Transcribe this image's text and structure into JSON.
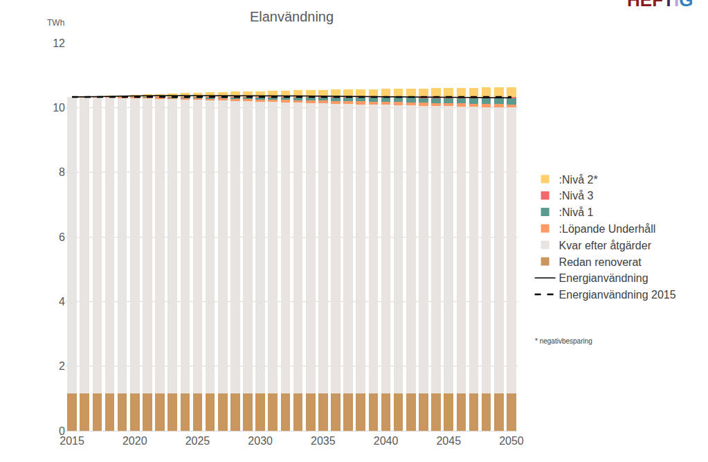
{
  "chart_data": {
    "type": "bar",
    "stacked": true,
    "title": "Elanvändning",
    "y_label": "TWh",
    "logo": "HEFTIG",
    "annotations": [
      "* negativbesparing"
    ],
    "legend": "right",
    "grid": true,
    "x": [
      2015,
      2016,
      2017,
      2018,
      2019,
      2020,
      2021,
      2022,
      2023,
      2024,
      2025,
      2026,
      2027,
      2028,
      2029,
      2030,
      2031,
      2032,
      2033,
      2034,
      2035,
      2036,
      2037,
      2038,
      2039,
      2040,
      2041,
      2042,
      2043,
      2044,
      2045,
      2046,
      2047,
      2048,
      2049,
      2050
    ],
    "xlim": [
      2014.5,
      2050.5
    ],
    "xticks": [
      2015,
      2020,
      2025,
      2030,
      2035,
      2040,
      2045,
      2050
    ],
    "ylim": [
      0,
      12
    ],
    "yticks": [
      0,
      2,
      4,
      6,
      8,
      10,
      12
    ],
    "series": [
      {
        "name": "Redan renoverat",
        "type": "bar",
        "color": "#c9965e",
        "values": [
          1.15,
          1.15,
          1.15,
          1.15,
          1.15,
          1.15,
          1.15,
          1.15,
          1.15,
          1.15,
          1.15,
          1.15,
          1.15,
          1.15,
          1.15,
          1.15,
          1.15,
          1.15,
          1.15,
          1.15,
          1.15,
          1.15,
          1.15,
          1.15,
          1.15,
          1.15,
          1.15,
          1.15,
          1.15,
          1.15,
          1.15,
          1.15,
          1.15,
          1.15,
          1.15,
          1.15
        ]
      },
      {
        "name": "Kvar efter åtgärder",
        "type": "bar",
        "color": "#e8e4e2",
        "values": [
          9.18,
          9.17,
          9.165,
          9.16,
          9.155,
          9.15,
          9.137,
          9.125,
          9.112,
          9.099,
          9.087,
          9.074,
          9.063,
          9.053,
          9.042,
          9.031,
          9.021,
          9.01,
          9.0,
          8.991,
          8.981,
          8.971,
          8.962,
          8.952,
          8.943,
          8.935,
          8.926,
          8.917,
          8.909,
          8.9,
          8.891,
          8.883,
          8.875,
          8.866,
          8.858,
          8.85
        ]
      },
      {
        "name": ":Löpande Underhåll",
        "type": "bar",
        "color": "#ff9966",
        "values": [
          0,
          0.01,
          0.015,
          0.02,
          0.025,
          0.03,
          0.035,
          0.04,
          0.045,
          0.05,
          0.055,
          0.06,
          0.063,
          0.066,
          0.069,
          0.072,
          0.075,
          0.078,
          0.08,
          0.082,
          0.084,
          0.086,
          0.088,
          0.09,
          0.091,
          0.092,
          0.093,
          0.094,
          0.095,
          0.096,
          0.097,
          0.098,
          0.098,
          0.099,
          0.1,
          0.1
        ]
      },
      {
        "name": ":Nivå 1",
        "type": "bar",
        "color": "#5b9a8f",
        "values": [
          0,
          0,
          0,
          0,
          0,
          0,
          0.007,
          0.013,
          0.02,
          0.027,
          0.033,
          0.04,
          0.047,
          0.053,
          0.06,
          0.067,
          0.073,
          0.08,
          0.087,
          0.093,
          0.1,
          0.107,
          0.113,
          0.12,
          0.127,
          0.133,
          0.14,
          0.147,
          0.153,
          0.16,
          0.167,
          0.173,
          0.18,
          0.187,
          0.193,
          0.2
        ]
      },
      {
        "name": ":Nivå 3",
        "type": "bar",
        "color": "#f4676a",
        "values": [
          0,
          0,
          0,
          0,
          0,
          0,
          0.001,
          0.002,
          0.003,
          0.004,
          0.005,
          0.006,
          0.007,
          0.008,
          0.009,
          0.01,
          0.011,
          0.012,
          0.013,
          0.014,
          0.015,
          0.016,
          0.017,
          0.018,
          0.019,
          0.02,
          0.021,
          0.022,
          0.023,
          0.024,
          0.025,
          0.026,
          0.027,
          0.028,
          0.029,
          0.03
        ]
      },
      {
        "name": ":Nivå 2*",
        "type": "bar",
        "color": "#ffd06b",
        "values": [
          0,
          0.01,
          0.02,
          0.035,
          0.05,
          0.065,
          0.08,
          0.095,
          0.11,
          0.12,
          0.13,
          0.14,
          0.15,
          0.16,
          0.17,
          0.18,
          0.19,
          0.2,
          0.21,
          0.215,
          0.22,
          0.23,
          0.235,
          0.24,
          0.245,
          0.25,
          0.255,
          0.26,
          0.265,
          0.27,
          0.275,
          0.28,
          0.285,
          0.29,
          0.295,
          0.3
        ]
      },
      {
        "name": "Energianvändning",
        "type": "line",
        "color": "#000000",
        "line_style": "solid",
        "values": [
          10.33,
          10.33,
          10.335,
          10.345,
          10.355,
          10.365,
          10.367,
          10.37,
          10.372,
          10.369,
          10.367,
          10.364,
          10.363,
          10.363,
          10.362,
          10.361,
          10.361,
          10.36,
          10.36,
          10.356,
          10.351,
          10.351,
          10.347,
          10.342,
          10.338,
          10.335,
          10.331,
          10.327,
          10.324,
          10.32,
          10.316,
          10.313,
          10.31,
          10.306,
          10.303,
          10.3
        ]
      },
      {
        "name": "Energianvändning 2015",
        "type": "line",
        "color": "#000000",
        "line_style": "dash",
        "values": [
          10.33,
          10.33,
          10.33,
          10.33,
          10.33,
          10.33,
          10.33,
          10.33,
          10.33,
          10.33,
          10.33,
          10.33,
          10.33,
          10.33,
          10.33,
          10.33,
          10.33,
          10.33,
          10.33,
          10.33,
          10.33,
          10.33,
          10.33,
          10.33,
          10.33,
          10.33,
          10.33,
          10.33,
          10.33,
          10.33,
          10.33,
          10.33,
          10.33,
          10.33,
          10.33,
          10.33
        ]
      }
    ]
  }
}
